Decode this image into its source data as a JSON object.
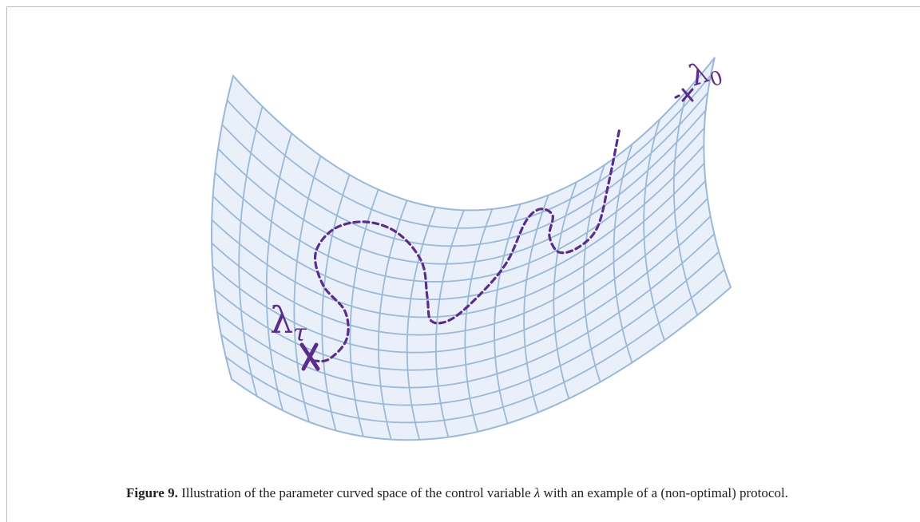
{
  "figure": {
    "labels": {
      "end": {
        "symbol": "λ",
        "subscript": "τ"
      },
      "start": {
        "symbol": "λ",
        "subscript": "0"
      }
    },
    "caption": {
      "number": "Figure 9.",
      "text_before": "Illustration of the parameter curved space of the control variable",
      "symbol": "λ",
      "text_after": "with an example of a (non-optimal) protocol."
    }
  }
}
